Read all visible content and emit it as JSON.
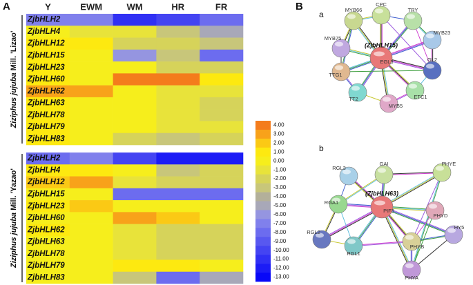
{
  "panel_label": "A",
  "chart_data": {
    "type": "heatmap",
    "categories": [
      "Y",
      "EWM",
      "WM",
      "HR",
      "FR"
    ],
    "panels": [
      {
        "species": "Ziziphus jujuba",
        "cultivar": "Mill. 'Lizao'",
        "rows": [
          "ZjbHLH2",
          "ZjbHLH4",
          "ZjbHLH12",
          "ZjbHLH15",
          "ZjbHLH23",
          "ZjbHLH60",
          "ZjbHLH62",
          "ZjbHLH63",
          "ZjbHLH78",
          "ZjbHLH79",
          "ZjbHLH83"
        ],
        "values": [
          [
            -7,
            -7,
            -11,
            -10,
            -8
          ],
          [
            0,
            -1,
            -1,
            -3,
            -5
          ],
          [
            1,
            1,
            -2,
            -2,
            -3
          ],
          [
            1,
            0,
            -6,
            -3,
            -8
          ],
          [
            1,
            0,
            0,
            -2,
            -2
          ],
          [
            1,
            0,
            4,
            4,
            1
          ],
          [
            3,
            3,
            0,
            -1,
            -1
          ],
          [
            1,
            0,
            0,
            -1,
            -2
          ],
          [
            1,
            0,
            0,
            -1,
            -2
          ],
          [
            1,
            0,
            0,
            -1,
            -1
          ],
          [
            1,
            0,
            -2,
            -3,
            -2
          ]
        ]
      },
      {
        "species": "Ziziphus jujuba",
        "cultivar": "Mill. 'Yazao'",
        "rows": [
          "ZjbHLH2",
          "ZjbHLH4",
          "ZjbHLH12",
          "ZjbHLH15",
          "ZjbHLH23",
          "ZjbHLH60",
          "ZjbHLH62",
          "ZjbHLH63",
          "ZjbHLH78",
          "ZjbHLH79",
          "ZjbHLH83"
        ],
        "values": [
          [
            -8,
            -7,
            -10,
            -12,
            -12
          ],
          [
            1,
            1,
            0,
            -3,
            -2
          ],
          [
            2,
            3,
            -1,
            -2,
            -2
          ],
          [
            0,
            0,
            -8,
            -8,
            -8
          ],
          [
            1,
            2,
            0,
            0,
            0
          ],
          [
            0,
            0,
            3,
            2,
            0
          ],
          [
            1,
            0,
            -1,
            -2,
            -2
          ],
          [
            0,
            0,
            -1,
            -2,
            -2
          ],
          [
            0,
            0,
            -1,
            -2,
            -2
          ],
          [
            0,
            0,
            1,
            1,
            0
          ],
          [
            0,
            0,
            -3,
            -8,
            -5
          ]
        ]
      }
    ],
    "colorbar": {
      "ticks": [
        {
          "value": 4,
          "label": "4.00"
        },
        {
          "value": 3,
          "label": "3.00"
        },
        {
          "value": 2,
          "label": "2.00"
        },
        {
          "value": 1,
          "label": "1.00"
        },
        {
          "value": 0,
          "label": "0.00"
        },
        {
          "value": -1,
          "label": "-1.00"
        },
        {
          "value": -2,
          "label": "-2.00"
        },
        {
          "value": -3,
          "label": "-3.00"
        },
        {
          "value": -4,
          "label": "-4.00"
        },
        {
          "value": -5,
          "label": "-5.00"
        },
        {
          "value": -6,
          "label": "-6.00"
        },
        {
          "value": -7,
          "label": "-7.00"
        },
        {
          "value": -8,
          "label": "-8.00"
        },
        {
          "value": -9,
          "label": "-9.00"
        },
        {
          "value": -10,
          "label": "-10.00"
        },
        {
          "value": -11,
          "label": "-11.00"
        },
        {
          "value": -12,
          "label": "-12.00"
        },
        {
          "value": -13,
          "label": "-13.00"
        }
      ],
      "colors": [
        "#f47c1c",
        "#f8a21a",
        "#fbc915",
        "#fde910",
        "#f6ee1c",
        "#e8e33a",
        "#d6d35a",
        "#c8c67a",
        "#b3b09a",
        "#a8a8b8",
        "#9595e0",
        "#8080ec",
        "#6c6cef",
        "#5858f0",
        "#4444f2",
        "#3030f4",
        "#1c1cf6",
        "#0808f8"
      ]
    }
  },
  "networks": {
    "label": "B",
    "items": [
      {
        "label": "a",
        "query": "(ZjbHLH15)",
        "nodes": [
          {
            "label": "CPC",
            "color": "#c8e09a"
          },
          {
            "label": "TRY",
            "color": "#b8e0a8"
          },
          {
            "label": "MYB66",
            "color": "#c8d890"
          },
          {
            "label": "MYB23",
            "color": "#a8c8e8"
          },
          {
            "label": "MYB75",
            "color": "#c0a8e0"
          },
          {
            "label": "EGL3",
            "color": "#e87878"
          },
          {
            "label": "GL2",
            "color": "#5870c0"
          },
          {
            "label": "TTG1",
            "color": "#e0b890"
          },
          {
            "label": "ETC1",
            "color": "#a8e0a8"
          },
          {
            "label": "TT2",
            "color": "#80d8d0"
          },
          {
            "label": "MYB5",
            "color": "#e0a8c8"
          }
        ]
      },
      {
        "label": "b",
        "query": "(ZjbHLH63)",
        "nodes": [
          {
            "label": "RGL3",
            "color": "#a8d0e8"
          },
          {
            "label": "GAI",
            "color": "#c8e0a0"
          },
          {
            "label": "PHYE",
            "color": "#c8e098"
          },
          {
            "label": "PIF3",
            "color": "#e87878"
          },
          {
            "label": "RGA1",
            "color": "#98d890"
          },
          {
            "label": "PHYD",
            "color": "#e0a8b8"
          },
          {
            "label": "RGL2",
            "color": "#6878c0"
          },
          {
            "label": "RGL1",
            "color": "#80c8c8"
          },
          {
            "label": "PHYB",
            "color": "#d8d098"
          },
          {
            "label": "HY5",
            "color": "#b8a8e0"
          },
          {
            "label": "PHYA",
            "color": "#c098d8"
          }
        ]
      }
    ]
  }
}
